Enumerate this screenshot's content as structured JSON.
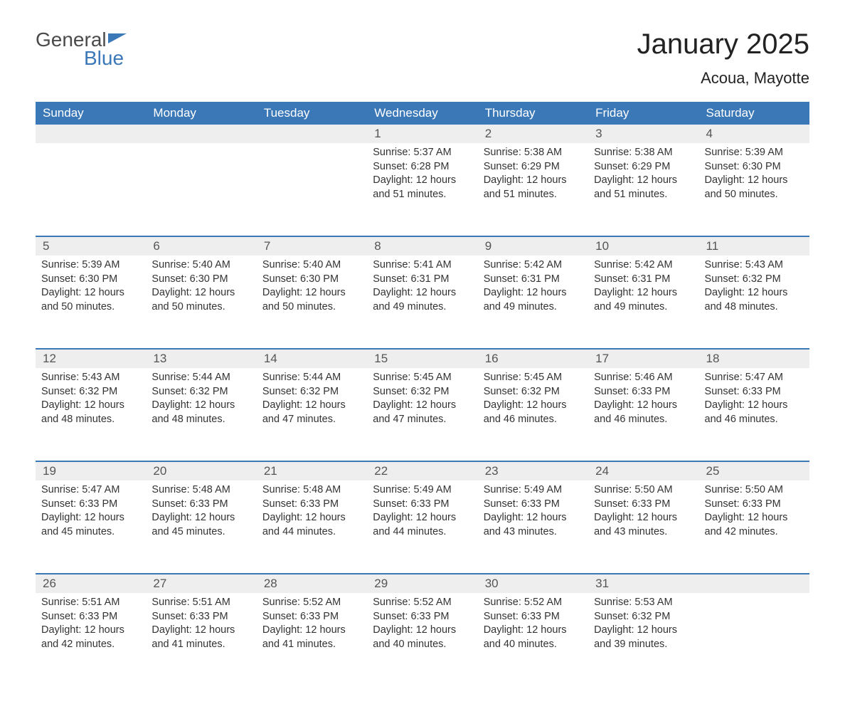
{
  "logo": {
    "text_general": "General",
    "text_blue": "Blue",
    "flag_color": "#3b78b8",
    "text_color_general": "#4a4a4a"
  },
  "title": "January 2025",
  "location": "Acoua, Mayotte",
  "colors": {
    "header_bg": "#3b78b8",
    "header_text": "#ffffff",
    "daystrip_bg": "#eeeeee",
    "week_border": "#3b78b8",
    "body_text": "#333333",
    "daynum_text": "#555555",
    "page_bg": "#ffffff"
  },
  "day_headers": [
    "Sunday",
    "Monday",
    "Tuesday",
    "Wednesday",
    "Thursday",
    "Friday",
    "Saturday"
  ],
  "weeks": [
    [
      {
        "n": "",
        "sunrise": "",
        "sunset": "",
        "day1": "",
        "day2": ""
      },
      {
        "n": "",
        "sunrise": "",
        "sunset": "",
        "day1": "",
        "day2": ""
      },
      {
        "n": "",
        "sunrise": "",
        "sunset": "",
        "day1": "",
        "day2": ""
      },
      {
        "n": "1",
        "sunrise": "Sunrise: 5:37 AM",
        "sunset": "Sunset: 6:28 PM",
        "day1": "Daylight: 12 hours",
        "day2": "and 51 minutes."
      },
      {
        "n": "2",
        "sunrise": "Sunrise: 5:38 AM",
        "sunset": "Sunset: 6:29 PM",
        "day1": "Daylight: 12 hours",
        "day2": "and 51 minutes."
      },
      {
        "n": "3",
        "sunrise": "Sunrise: 5:38 AM",
        "sunset": "Sunset: 6:29 PM",
        "day1": "Daylight: 12 hours",
        "day2": "and 51 minutes."
      },
      {
        "n": "4",
        "sunrise": "Sunrise: 5:39 AM",
        "sunset": "Sunset: 6:30 PM",
        "day1": "Daylight: 12 hours",
        "day2": "and 50 minutes."
      }
    ],
    [
      {
        "n": "5",
        "sunrise": "Sunrise: 5:39 AM",
        "sunset": "Sunset: 6:30 PM",
        "day1": "Daylight: 12 hours",
        "day2": "and 50 minutes."
      },
      {
        "n": "6",
        "sunrise": "Sunrise: 5:40 AM",
        "sunset": "Sunset: 6:30 PM",
        "day1": "Daylight: 12 hours",
        "day2": "and 50 minutes."
      },
      {
        "n": "7",
        "sunrise": "Sunrise: 5:40 AM",
        "sunset": "Sunset: 6:30 PM",
        "day1": "Daylight: 12 hours",
        "day2": "and 50 minutes."
      },
      {
        "n": "8",
        "sunrise": "Sunrise: 5:41 AM",
        "sunset": "Sunset: 6:31 PM",
        "day1": "Daylight: 12 hours",
        "day2": "and 49 minutes."
      },
      {
        "n": "9",
        "sunrise": "Sunrise: 5:42 AM",
        "sunset": "Sunset: 6:31 PM",
        "day1": "Daylight: 12 hours",
        "day2": "and 49 minutes."
      },
      {
        "n": "10",
        "sunrise": "Sunrise: 5:42 AM",
        "sunset": "Sunset: 6:31 PM",
        "day1": "Daylight: 12 hours",
        "day2": "and 49 minutes."
      },
      {
        "n": "11",
        "sunrise": "Sunrise: 5:43 AM",
        "sunset": "Sunset: 6:32 PM",
        "day1": "Daylight: 12 hours",
        "day2": "and 48 minutes."
      }
    ],
    [
      {
        "n": "12",
        "sunrise": "Sunrise: 5:43 AM",
        "sunset": "Sunset: 6:32 PM",
        "day1": "Daylight: 12 hours",
        "day2": "and 48 minutes."
      },
      {
        "n": "13",
        "sunrise": "Sunrise: 5:44 AM",
        "sunset": "Sunset: 6:32 PM",
        "day1": "Daylight: 12 hours",
        "day2": "and 48 minutes."
      },
      {
        "n": "14",
        "sunrise": "Sunrise: 5:44 AM",
        "sunset": "Sunset: 6:32 PM",
        "day1": "Daylight: 12 hours",
        "day2": "and 47 minutes."
      },
      {
        "n": "15",
        "sunrise": "Sunrise: 5:45 AM",
        "sunset": "Sunset: 6:32 PM",
        "day1": "Daylight: 12 hours",
        "day2": "and 47 minutes."
      },
      {
        "n": "16",
        "sunrise": "Sunrise: 5:45 AM",
        "sunset": "Sunset: 6:32 PM",
        "day1": "Daylight: 12 hours",
        "day2": "and 46 minutes."
      },
      {
        "n": "17",
        "sunrise": "Sunrise: 5:46 AM",
        "sunset": "Sunset: 6:33 PM",
        "day1": "Daylight: 12 hours",
        "day2": "and 46 minutes."
      },
      {
        "n": "18",
        "sunrise": "Sunrise: 5:47 AM",
        "sunset": "Sunset: 6:33 PM",
        "day1": "Daylight: 12 hours",
        "day2": "and 46 minutes."
      }
    ],
    [
      {
        "n": "19",
        "sunrise": "Sunrise: 5:47 AM",
        "sunset": "Sunset: 6:33 PM",
        "day1": "Daylight: 12 hours",
        "day2": "and 45 minutes."
      },
      {
        "n": "20",
        "sunrise": "Sunrise: 5:48 AM",
        "sunset": "Sunset: 6:33 PM",
        "day1": "Daylight: 12 hours",
        "day2": "and 45 minutes."
      },
      {
        "n": "21",
        "sunrise": "Sunrise: 5:48 AM",
        "sunset": "Sunset: 6:33 PM",
        "day1": "Daylight: 12 hours",
        "day2": "and 44 minutes."
      },
      {
        "n": "22",
        "sunrise": "Sunrise: 5:49 AM",
        "sunset": "Sunset: 6:33 PM",
        "day1": "Daylight: 12 hours",
        "day2": "and 44 minutes."
      },
      {
        "n": "23",
        "sunrise": "Sunrise: 5:49 AM",
        "sunset": "Sunset: 6:33 PM",
        "day1": "Daylight: 12 hours",
        "day2": "and 43 minutes."
      },
      {
        "n": "24",
        "sunrise": "Sunrise: 5:50 AM",
        "sunset": "Sunset: 6:33 PM",
        "day1": "Daylight: 12 hours",
        "day2": "and 43 minutes."
      },
      {
        "n": "25",
        "sunrise": "Sunrise: 5:50 AM",
        "sunset": "Sunset: 6:33 PM",
        "day1": "Daylight: 12 hours",
        "day2": "and 42 minutes."
      }
    ],
    [
      {
        "n": "26",
        "sunrise": "Sunrise: 5:51 AM",
        "sunset": "Sunset: 6:33 PM",
        "day1": "Daylight: 12 hours",
        "day2": "and 42 minutes."
      },
      {
        "n": "27",
        "sunrise": "Sunrise: 5:51 AM",
        "sunset": "Sunset: 6:33 PM",
        "day1": "Daylight: 12 hours",
        "day2": "and 41 minutes."
      },
      {
        "n": "28",
        "sunrise": "Sunrise: 5:52 AM",
        "sunset": "Sunset: 6:33 PM",
        "day1": "Daylight: 12 hours",
        "day2": "and 41 minutes."
      },
      {
        "n": "29",
        "sunrise": "Sunrise: 5:52 AM",
        "sunset": "Sunset: 6:33 PM",
        "day1": "Daylight: 12 hours",
        "day2": "and 40 minutes."
      },
      {
        "n": "30",
        "sunrise": "Sunrise: 5:52 AM",
        "sunset": "Sunset: 6:33 PM",
        "day1": "Daylight: 12 hours",
        "day2": "and 40 minutes."
      },
      {
        "n": "31",
        "sunrise": "Sunrise: 5:53 AM",
        "sunset": "Sunset: 6:32 PM",
        "day1": "Daylight: 12 hours",
        "day2": "and 39 minutes."
      },
      {
        "n": "",
        "sunrise": "",
        "sunset": "",
        "day1": "",
        "day2": ""
      }
    ]
  ]
}
